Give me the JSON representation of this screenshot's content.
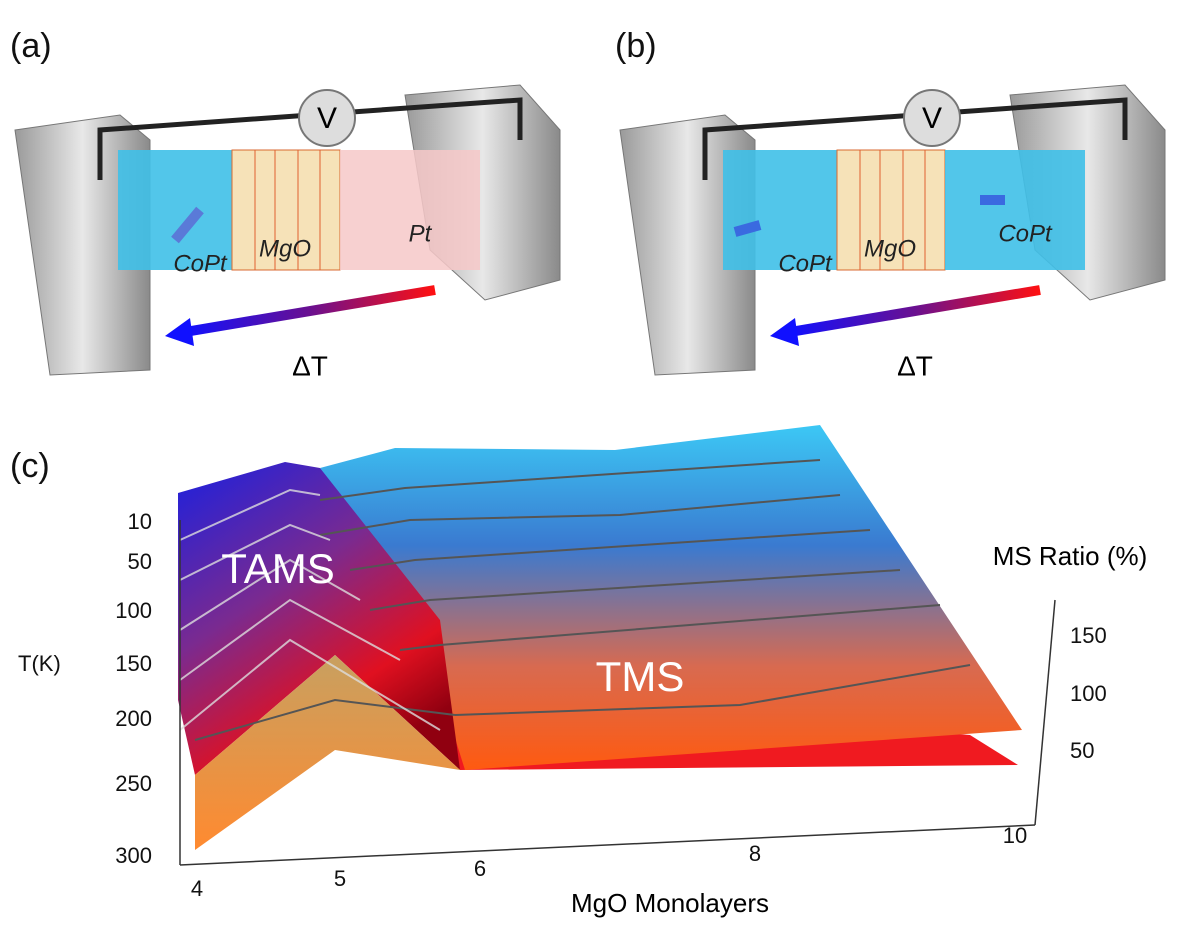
{
  "panels": [
    {
      "label": "(a)",
      "layers": [
        "CoPt",
        "MgO",
        "Pt"
      ],
      "meter": "V",
      "gradient": "ΔT"
    },
    {
      "label": "(b)",
      "layers": [
        "CoPt",
        "MgO",
        "CoPt"
      ],
      "meter": "V",
      "gradient": "ΔT"
    }
  ],
  "plot": {
    "label": "(c)",
    "x_label": "MgO Monolayers",
    "y_label": "T(K)",
    "z_label": "MS Ratio (%)",
    "x_ticks": [
      4,
      5,
      6,
      8,
      10
    ],
    "y_ticks": [
      10,
      50,
      100,
      150,
      200,
      250,
      300
    ],
    "z_ticks": [
      150,
      100,
      50
    ],
    "annotations": [
      "TAMS",
      "TMS"
    ]
  }
}
